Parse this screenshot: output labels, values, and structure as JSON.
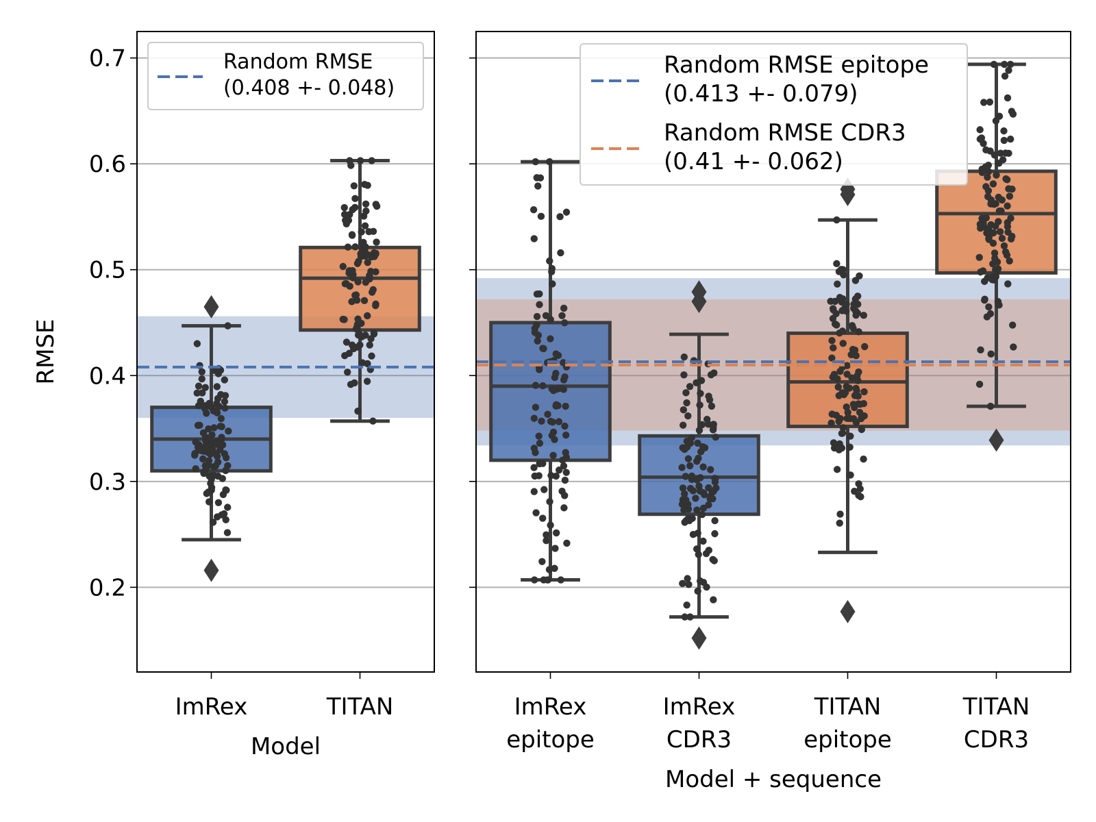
{
  "chart_data": [
    {
      "type": "box",
      "xlabel": "Model",
      "ylabel": "RMSE",
      "ylim": [
        0.12,
        0.725
      ],
      "yticks": [
        "0.2",
        "0.3",
        "0.4",
        "0.5",
        "0.6",
        "0.7"
      ],
      "grid": "y",
      "categories": [
        "ImRex",
        "TITAN"
      ],
      "boxes": [
        {
          "category": "ImRex",
          "color": "#4c72b0",
          "q1": 0.31,
          "median": 0.34,
          "q3": 0.37,
          "whisker_low": 0.245,
          "whisker_high": 0.447,
          "outliers": [
            0.465,
            0.216
          ]
        },
        {
          "category": "TITAN",
          "color": "#dd8452",
          "q1": 0.443,
          "median": 0.492,
          "q3": 0.521,
          "whisker_low": 0.357,
          "whisker_high": 0.603,
          "outliers": []
        }
      ],
      "reference_lines": [
        {
          "label": "Random RMSE",
          "detail": "(0.408 +- 0.048)",
          "mean": 0.408,
          "sd": 0.048,
          "color": "#4c72b0"
        }
      ],
      "legend_position": "top-left"
    },
    {
      "type": "box",
      "xlabel": "Model + sequence",
      "ylabel": "",
      "ylim": [
        0.12,
        0.725
      ],
      "grid": "y",
      "categories": [
        [
          "ImRex",
          "epitope"
        ],
        [
          "ImRex",
          "CDR3"
        ],
        [
          "TITAN",
          "epitope"
        ],
        [
          "TITAN",
          "CDR3"
        ]
      ],
      "boxes": [
        {
          "category": "ImRex epitope",
          "color": "#4c72b0",
          "q1": 0.32,
          "median": 0.39,
          "q3": 0.45,
          "whisker_low": 0.207,
          "whisker_high": 0.602,
          "outliers": []
        },
        {
          "category": "ImRex CDR3",
          "color": "#4c72b0",
          "q1": 0.269,
          "median": 0.304,
          "q3": 0.343,
          "whisker_low": 0.172,
          "whisker_high": 0.439,
          "outliers": [
            0.479,
            0.47,
            0.152
          ]
        },
        {
          "category": "TITAN epitope",
          "color": "#dd8452",
          "q1": 0.352,
          "median": 0.394,
          "q3": 0.44,
          "whisker_low": 0.233,
          "whisker_high": 0.547,
          "outliers": [
            0.576,
            0.571,
            0.177
          ]
        },
        {
          "category": "TITAN CDR3",
          "color": "#dd8452",
          "q1": 0.497,
          "median": 0.553,
          "q3": 0.593,
          "whisker_low": 0.371,
          "whisker_high": 0.694,
          "outliers": [
            0.339
          ]
        }
      ],
      "reference_lines": [
        {
          "label": "Random RMSE epitope",
          "detail": "(0.413 +- 0.079)",
          "mean": 0.413,
          "sd": 0.079,
          "color": "#4c72b0"
        },
        {
          "label": "Random RMSE CDR3",
          "detail": "(0.41 +- 0.062)",
          "mean": 0.41,
          "sd": 0.062,
          "color": "#dd8452"
        }
      ],
      "legend_position": "top-center"
    }
  ]
}
